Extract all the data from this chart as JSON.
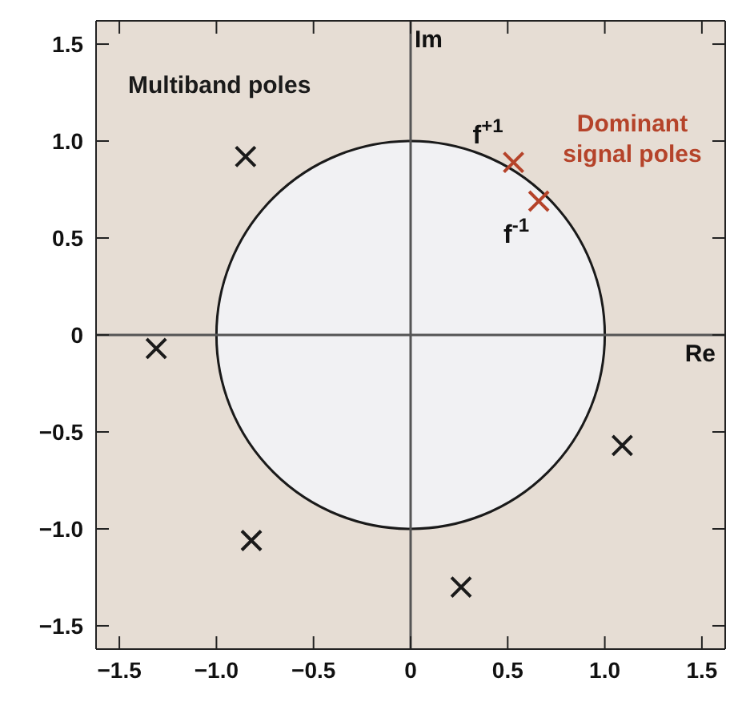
{
  "chart_data": {
    "type": "scatter",
    "xlim": [
      -1.62,
      1.62
    ],
    "ylim": [
      -1.62,
      1.62
    ],
    "xticks": [
      {
        "value": -1.5,
        "label": "−1.5"
      },
      {
        "value": -1,
        "label": "−1.0"
      },
      {
        "value": -0.5,
        "label": "−0.5"
      },
      {
        "value": 0,
        "label": "0"
      },
      {
        "value": 0.5,
        "label": "0.5"
      },
      {
        "value": 1,
        "label": "1.0"
      },
      {
        "value": 1.5,
        "label": "1.5"
      }
    ],
    "yticks": [
      {
        "value": -1.5,
        "label": "−1.5"
      },
      {
        "value": -1,
        "label": "−1.0"
      },
      {
        "value": -0.5,
        "label": "−0.5"
      },
      {
        "value": 0,
        "label": "0"
      },
      {
        "value": 0.5,
        "label": "0.5"
      },
      {
        "value": 1,
        "label": "1.0"
      },
      {
        "value": 1.5,
        "label": "1.5"
      }
    ],
    "series": [
      {
        "type": "scatter",
        "color": "#1a1a1a",
        "marker": "cross",
        "x": [
          -0.85,
          -1.31,
          -0.82,
          0.26,
          1.09
        ],
        "values": [
          0.92,
          -0.07,
          -1.06,
          -1.3,
          -0.57
        ]
      },
      {
        "type": "scatter",
        "color": "#b5432a",
        "marker": "cross",
        "x": [
          0.53,
          0.66
        ],
        "values": [
          0.89,
          0.69
        ]
      }
    ],
    "ref_lines": [
      {
        "axis": "x",
        "value": 0,
        "label": "Im",
        "color": "#555555"
      },
      {
        "axis": "y",
        "value": 0,
        "label": "Re",
        "color": "#555555"
      }
    ],
    "annotations": [
      "Multiband poles",
      "Dominant signal poles",
      {
        "text": "f$^{+1}$",
        "x": 0.53,
        "y": 0.89
      },
      {
        "text": "f$^{-1}$",
        "x": 0.66,
        "y": 0.69
      }
    ],
    "grid": false,
    "legend": false
  }
}
